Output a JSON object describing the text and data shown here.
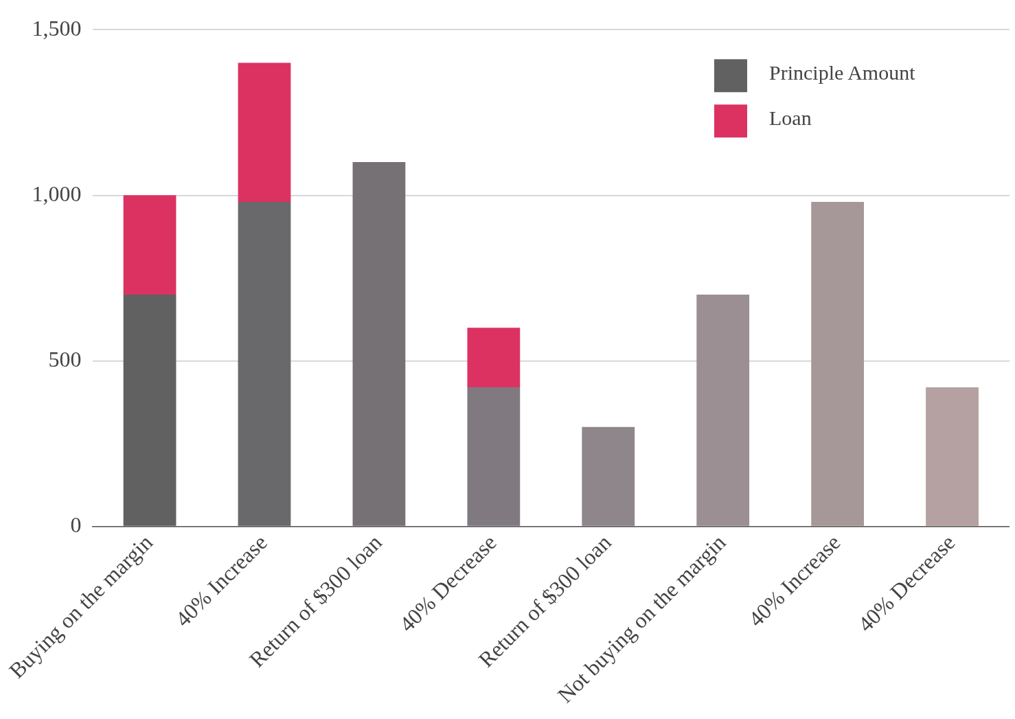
{
  "chart_data": {
    "type": "bar",
    "stacked": true,
    "categories": [
      "Buying on the margin",
      "40% Increase",
      "Return of $300 loan",
      "40% Decrease",
      "Return of $300 loan",
      "Not buying on the margin",
      "40% Increase",
      "40% Decrease"
    ],
    "series": [
      {
        "name": "Principle Amount",
        "color": "#616161",
        "colors": [
          "#616161",
          "#69686a",
          "#757174",
          "#807a80",
          "#8f868b",
          "#9c8f93",
          "#a69798",
          "#b5a1a1"
        ],
        "values": [
          700,
          980,
          1100,
          420,
          300,
          700,
          980,
          420
        ]
      },
      {
        "name": "Loan",
        "color": "#dc3262",
        "values": [
          300,
          420,
          0,
          180,
          0,
          0,
          0,
          0
        ]
      }
    ],
    "ylim": [
      0,
      1500
    ],
    "yticks": [
      {
        "value": 0,
        "label": "0"
      },
      {
        "value": 500,
        "label": "500"
      },
      {
        "value": 1000,
        "label": "1,000"
      },
      {
        "value": 1500,
        "label": "1,500"
      }
    ],
    "grid": "y",
    "legend": "top right"
  }
}
